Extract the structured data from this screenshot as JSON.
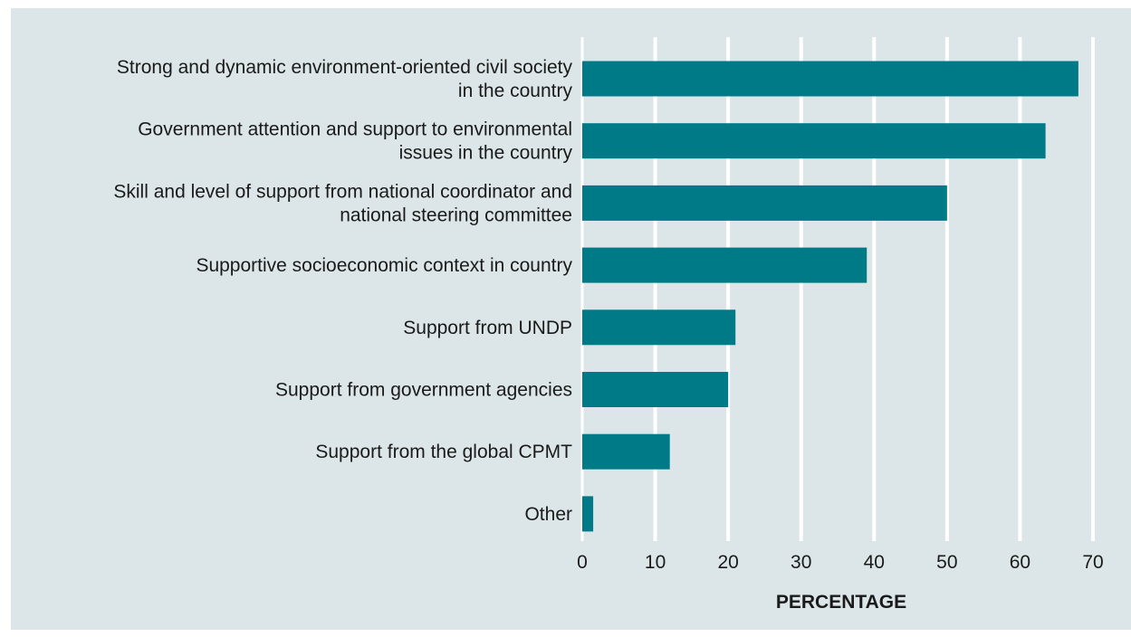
{
  "chart_data": {
    "type": "bar",
    "orientation": "horizontal",
    "categories": [
      [
        "Strong and dynamic environment-oriented civil society",
        "in the country"
      ],
      [
        "Government attention and support to environmental",
        "issues in the country"
      ],
      [
        "Skill and level of support from national coordinator and",
        "national steering committee"
      ],
      [
        "Supportive socioeconomic context in country"
      ],
      [
        "Support from UNDP"
      ],
      [
        "Support from government agencies"
      ],
      [
        "Support from the global CPMT"
      ],
      [
        "Other"
      ]
    ],
    "values": [
      68,
      63.5,
      50,
      39,
      21,
      20,
      12,
      1.5
    ],
    "xlabel": "PERCENTAGE",
    "ylabel": "",
    "xlim": [
      0,
      70
    ],
    "xticks": [
      0,
      10,
      20,
      30,
      40,
      50,
      60,
      70
    ],
    "grid": "vertical",
    "colors": {
      "bar": "#007a87",
      "background": "#dce6e9",
      "grid": "#ffffff",
      "text": "#1a1a1a"
    }
  }
}
